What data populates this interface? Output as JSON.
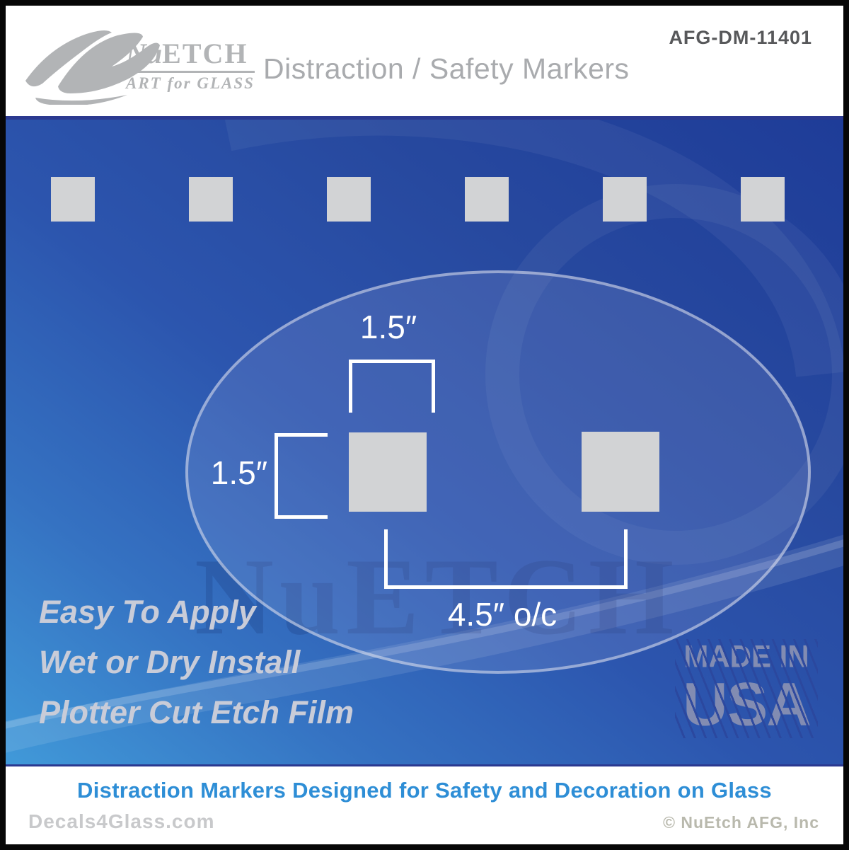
{
  "header": {
    "logo": {
      "name_prefix": "Nu",
      "name_suffix": "ETCH",
      "subtitle": "ART for GLASS"
    },
    "title": "Distraction / Safety Markers",
    "product_code": "AFG-DM-11401"
  },
  "top_row": {
    "square_count": 6
  },
  "diagram": {
    "width_label": "1.5″",
    "height_label": "1.5″",
    "spacing_label": "4.5″ o/c"
  },
  "features": {
    "line1": "Easy To Apply",
    "line2": "Wet or Dry Install",
    "line3": "Plotter Cut Etch Film"
  },
  "made_in": {
    "line1": "MADE IN",
    "line2": "USA"
  },
  "watermark": "NuETCH",
  "footer": {
    "tagline": "Distraction Markers Designed for Safety and Decoration on Glass",
    "website": "Decals4Glass.com",
    "copyright": "© NuEtch AFG, Inc"
  },
  "colors": {
    "accent_blue": "#2e8ed6",
    "panel_dark_blue": "#1e3c98",
    "panel_light_blue": "#419ad9",
    "rule_navy": "#2b3990",
    "marker_gray": "#d2d3d5",
    "logo_gray": "#b2b4b6",
    "made_in_gray": "#828cb2"
  }
}
